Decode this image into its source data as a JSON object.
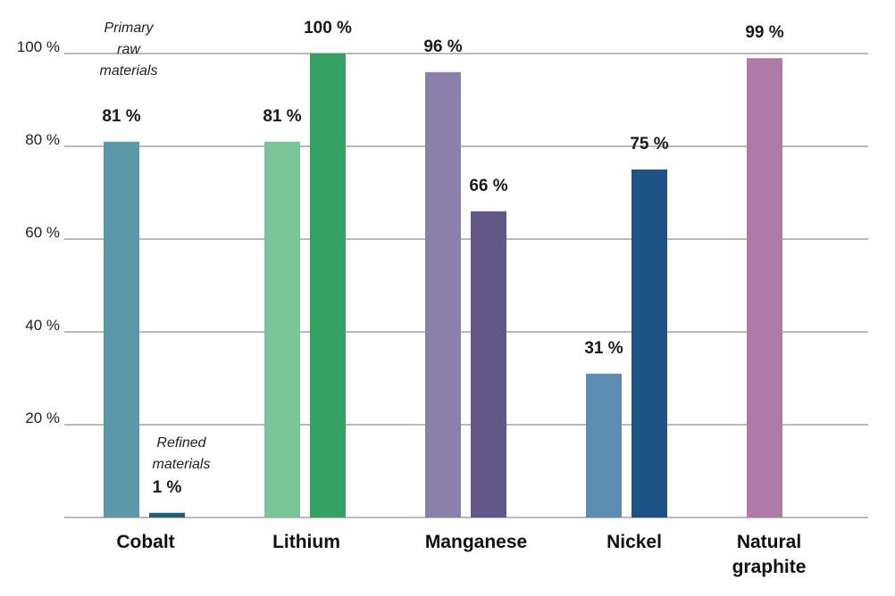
{
  "chart_data": {
    "type": "bar",
    "categories": [
      "Cobalt",
      "Lithium",
      "Manganese",
      "Nickel",
      "Natural graphite"
    ],
    "category_lines": [
      [
        "Cobalt"
      ],
      [
        "Lithium"
      ],
      [
        "Manganese"
      ],
      [
        "Nickel"
      ],
      [
        "Natural",
        "graphite"
      ]
    ],
    "series": [
      {
        "name": "Primary raw materials",
        "name_lines": [
          "Primary",
          "raw",
          "materials"
        ],
        "values": [
          81,
          81,
          96,
          31,
          99
        ]
      },
      {
        "name": "Refined materials",
        "name_lines": [
          "Refined",
          "materials"
        ],
        "values": [
          1,
          100,
          66,
          75,
          null
        ]
      }
    ],
    "ylim": [
      0,
      100
    ],
    "yticks": [
      20,
      40,
      60,
      80,
      100
    ],
    "ytick_labels": [
      "20 %",
      "40 %",
      "60 %",
      "80 %",
      "100 %"
    ],
    "value_suffix": " %",
    "grid": true,
    "colors": {
      "primary": [
        "#5b98a6",
        "#78c496",
        "#8a80ab",
        "#5c8db3",
        "#b07aa6"
      ],
      "refined": [
        "#1e5f79",
        "#34a262",
        "#625789",
        "#1c5384",
        null
      ]
    }
  }
}
